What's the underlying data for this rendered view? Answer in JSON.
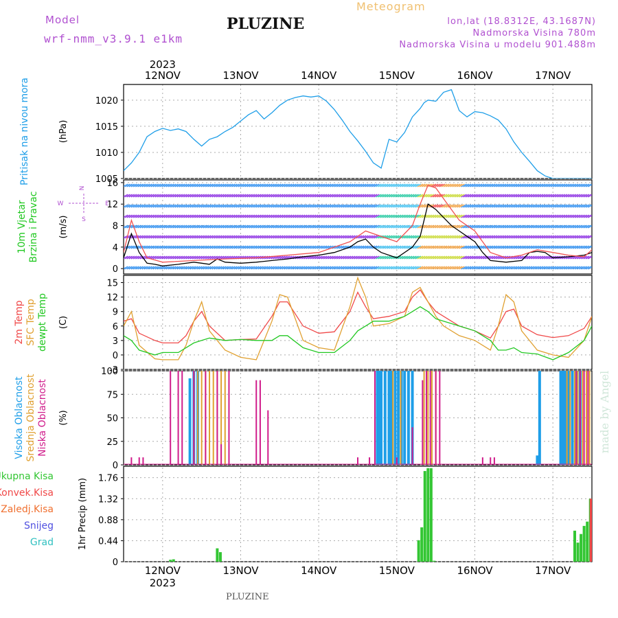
{
  "header": {
    "model_label": "Model",
    "model_name": "wrf-nmm_v3.9.1 e1km",
    "station": "PLUZINE",
    "product": "Meteogram",
    "coords": "lon,lat (18.8312E, 43.1687N)",
    "elevation": "Nadmorska Visina 780m",
    "model_elevation": "Nadmorska Visina u modelu 901.488m",
    "footer_station": "PLUZINE",
    "watermark": "made by Angel"
  },
  "colors": {
    "pressure": "#1e9ee8",
    "t2m": "#f04848",
    "sfc": "#e0a030",
    "dewpt": "#22c822",
    "wind_line": "#000000",
    "gust_line": "#f05050",
    "high_cloud": "#1e9ee8",
    "mid_cloud": "#e0a030",
    "low_cloud": "#d01c8b",
    "rain_total": "#33c633",
    "rain_conv": "#f04848",
    "rain_freeze": "#f07030",
    "snow": "#5050e0",
    "hail": "#30c0c0",
    "purple_text": "#b050d0"
  },
  "time_axis": {
    "year": "2023",
    "days": [
      "12NOV",
      "13NOV",
      "14NOV",
      "15NOV",
      "16NOV",
      "17NOV"
    ],
    "range_days": [
      11.5,
      17.5
    ]
  },
  "chart_data": [
    {
      "type": "line",
      "panel": "pressure",
      "title_left": "Pritisak na nivou mora",
      "ylabel": "(hPa)",
      "ylim": [
        1005,
        1023
      ],
      "yticks": [
        "1005",
        "1010",
        "1015",
        "1020"
      ],
      "series": [
        {
          "name": "Pritisak na nivou mora",
          "x": [
            11.5,
            11.6,
            11.7,
            11.8,
            11.9,
            12.0,
            12.1,
            12.2,
            12.3,
            12.4,
            12.5,
            12.6,
            12.7,
            12.8,
            12.9,
            13.0,
            13.1,
            13.2,
            13.3,
            13.4,
            13.5,
            13.6,
            13.7,
            13.8,
            13.9,
            14.0,
            14.1,
            14.2,
            14.3,
            14.4,
            14.5,
            14.6,
            14.7,
            14.8,
            14.9,
            15.0,
            15.1,
            15.2,
            15.3,
            15.35,
            15.4,
            15.5,
            15.6,
            15.7,
            15.8,
            15.9,
            16.0,
            16.1,
            16.2,
            16.3,
            16.4,
            16.5,
            16.6,
            16.7,
            16.8,
            16.9,
            17.0,
            17.1,
            17.2,
            17.3,
            17.4,
            17.5
          ],
          "y": [
            1006.5,
            1008,
            1010,
            1013,
            1014,
            1014.6,
            1014.2,
            1014.5,
            1014.0,
            1012.5,
            1011.2,
            1012.5,
            1013.0,
            1014.0,
            1014.8,
            1016.0,
            1017.2,
            1018.0,
            1016.4,
            1017.6,
            1019.0,
            1020.0,
            1020.5,
            1020.8,
            1020.6,
            1020.8,
            1019.8,
            1018.2,
            1016.2,
            1014.0,
            1012.2,
            1010.2,
            1008.0,
            1007.0,
            1012.5,
            1012.0,
            1013.8,
            1016.8,
            1018.4,
            1019.5,
            1020.0,
            1019.8,
            1021.5,
            1022.0,
            1018.0,
            1016.8,
            1017.8,
            1017.6,
            1017.0,
            1016.2,
            1014.5,
            1012.0,
            1010.0,
            1008.3,
            1006.5,
            1005.5,
            1005.0,
            1005.0,
            1005.0,
            1005.0,
            1005.0,
            1005.0
          ]
        }
      ]
    },
    {
      "type": "line",
      "panel": "wind",
      "title_left": [
        "10m Vjetar",
        "Brzina i Pravac"
      ],
      "ylabel": "(m/s)",
      "ylim": [
        -1,
        16.5
      ],
      "yticks": [
        "0",
        "4",
        "8",
        "12",
        "16"
      ],
      "legend_compass": {
        "n": "N",
        "s": "S",
        "w": "W",
        "e": "E"
      },
      "series": [
        {
          "name": "speed",
          "x": [
            11.5,
            11.6,
            11.7,
            11.8,
            11.9,
            12.0,
            12.2,
            12.4,
            12.5,
            12.6,
            12.7,
            12.8,
            13.0,
            13.2,
            13.4,
            13.6,
            13.8,
            14.0,
            14.2,
            14.4,
            14.5,
            14.6,
            14.7,
            14.8,
            15.0,
            15.2,
            15.3,
            15.4,
            15.5,
            15.6,
            15.7,
            15.8,
            15.9,
            16.0,
            16.1,
            16.2,
            16.4,
            16.6,
            16.7,
            16.8,
            16.9,
            17.0,
            17.2,
            17.4,
            17.5
          ],
          "y": [
            2,
            6.5,
            3,
            1,
            0.8,
            0.5,
            0.8,
            1.2,
            1.0,
            0.8,
            1.8,
            1.2,
            1.0,
            1.2,
            1.5,
            1.8,
            2.2,
            2.5,
            3,
            4,
            5,
            5.5,
            4,
            3,
            2,
            4,
            6,
            12,
            11,
            9.5,
            8,
            7,
            6,
            5,
            3,
            1.5,
            1.2,
            1.5,
            3,
            3.2,
            3.0,
            2.0,
            2.2,
            2.5,
            3
          ]
        },
        {
          "name": "gust",
          "x": [
            11.5,
            11.6,
            11.7,
            11.8,
            12.0,
            12.4,
            12.8,
            13.2,
            13.6,
            14.0,
            14.4,
            14.6,
            14.8,
            15.0,
            15.2,
            15.3,
            15.4,
            15.5,
            15.6,
            15.7,
            15.8,
            16.0,
            16.2,
            16.4,
            16.6,
            16.8,
            17.0,
            17.2,
            17.4,
            17.5
          ],
          "y": [
            3,
            9,
            5,
            2,
            1.2,
            1.5,
            1.8,
            2,
            2.5,
            3,
            5,
            7,
            6,
            5,
            8,
            12,
            15.5,
            15,
            13,
            11,
            9,
            7,
            3,
            2,
            2.5,
            3.5,
            3,
            2.5,
            2.2,
            3.5
          ]
        }
      ]
    },
    {
      "type": "line",
      "panel": "temperature",
      "title_left": [
        "2m Temp",
        "SFC Temp",
        "dewpt Temp"
      ],
      "ylabel": "(C)",
      "ylim": [
        -3,
        16.5
      ],
      "yticks": [
        "-3",
        "0",
        "3",
        "6",
        "9",
        "12",
        "15"
      ],
      "series": [
        {
          "name": "2m Temp",
          "x": [
            11.5,
            11.6,
            11.7,
            11.9,
            12.0,
            12.2,
            12.3,
            12.4,
            12.5,
            12.6,
            12.8,
            13.0,
            13.2,
            13.4,
            13.5,
            13.6,
            13.8,
            14.0,
            14.2,
            14.4,
            14.5,
            14.6,
            14.7,
            14.9,
            15.1,
            15.2,
            15.3,
            15.4,
            15.5,
            15.6,
            15.8,
            16.0,
            16.2,
            16.3,
            16.4,
            16.5,
            16.6,
            16.8,
            17.0,
            17.2,
            17.4,
            17.5
          ],
          "y": [
            7,
            7.5,
            4.5,
            3,
            2.5,
            2.5,
            4,
            7,
            9,
            6,
            3,
            3.2,
            3.3,
            8,
            11,
            11,
            6,
            4.5,
            4.8,
            9,
            13,
            10,
            7.5,
            8,
            9,
            12,
            13.5,
            11,
            9,
            8,
            6,
            5,
            3.5,
            6,
            9,
            9.5,
            6,
            4.2,
            3.6,
            4,
            5.5,
            8
          ]
        },
        {
          "name": "SFC Temp",
          "x": [
            11.5,
            11.6,
            11.7,
            11.9,
            12.0,
            12.2,
            12.3,
            12.4,
            12.5,
            12.6,
            12.8,
            13.0,
            13.2,
            13.4,
            13.5,
            13.6,
            13.8,
            14.0,
            14.2,
            14.4,
            14.5,
            14.6,
            14.7,
            14.9,
            15.1,
            15.2,
            15.3,
            15.4,
            15.5,
            15.6,
            15.8,
            16.0,
            16.2,
            16.3,
            16.4,
            16.5,
            16.6,
            16.8,
            17.0,
            17.2,
            17.4,
            17.5
          ],
          "y": [
            6,
            9,
            2,
            -0.8,
            -1,
            -1,
            2,
            7,
            11,
            5,
            1,
            -0.5,
            -1,
            7,
            12.5,
            12,
            3,
            1.5,
            1,
            10,
            16,
            12,
            6,
            6.5,
            8,
            13,
            14,
            11,
            8,
            6,
            4,
            3,
            1,
            6,
            12.5,
            11,
            5,
            1,
            0,
            -0.5,
            3,
            8
          ]
        },
        {
          "name": "dewpt Temp",
          "x": [
            11.5,
            11.6,
            11.7,
            11.9,
            12.0,
            12.2,
            12.3,
            12.4,
            12.5,
            12.6,
            12.8,
            13.0,
            13.2,
            13.4,
            13.5,
            13.6,
            13.8,
            14.0,
            14.2,
            14.4,
            14.5,
            14.6,
            14.7,
            14.9,
            15.1,
            15.2,
            15.3,
            15.4,
            15.5,
            15.6,
            15.8,
            16.0,
            16.2,
            16.3,
            16.4,
            16.5,
            16.6,
            16.8,
            17.0,
            17.2,
            17.4,
            17.5
          ],
          "y": [
            4,
            3,
            1,
            0,
            0.5,
            0.5,
            1.5,
            2.5,
            3,
            3.5,
            3,
            3.2,
            3,
            3,
            4,
            4,
            1.5,
            0.5,
            0.5,
            3,
            5,
            6,
            7,
            7,
            8,
            9,
            10,
            9,
            7.5,
            7,
            6,
            5,
            3,
            1,
            1,
            1.5,
            0.5,
            0.2,
            -1,
            0.5,
            3,
            6
          ]
        }
      ]
    },
    {
      "type": "bar",
      "panel": "clouds",
      "title_left": [
        "Visoka Oblacnost",
        "Srednja Oblacnost",
        "Niska Oblacnost"
      ],
      "ylabel": "(%)",
      "ylim": [
        0,
        100
      ],
      "yticks": [
        "0",
        "25",
        "50",
        "75",
        "100"
      ],
      "series": [
        {
          "name": "Visoka Oblacnost",
          "x": [
            12.35,
            12.4,
            12.45,
            14.75,
            14.78,
            14.8,
            14.85,
            14.9,
            14.93,
            14.98,
            15.02,
            15.06,
            15.1,
            15.15,
            15.2,
            16.8,
            16.83,
            17.1,
            17.13,
            17.16,
            17.2,
            17.25,
            17.3,
            17.35
          ],
          "y": [
            92,
            100,
            100,
            100,
            100,
            100,
            100,
            100,
            100,
            100,
            100,
            100,
            100,
            100,
            100,
            10,
            100,
            100,
            100,
            100,
            100,
            100,
            100,
            100
          ]
        },
        {
          "name": "Srednja Oblacnost",
          "x": [
            12.4,
            12.45,
            12.5,
            12.55,
            12.6,
            12.65,
            12.7,
            12.75,
            12.8,
            14.95,
            15.05,
            15.35,
            15.4,
            15.45,
            15.5,
            17.18,
            17.22,
            17.28,
            17.32,
            17.38,
            17.43,
            17.47
          ],
          "y": [
            100,
            100,
            100,
            100,
            100,
            100,
            100,
            100,
            100,
            100,
            100,
            100,
            100,
            100,
            100,
            100,
            100,
            100,
            100,
            100,
            100,
            100
          ]
        },
        {
          "name": "Niska Oblacnost",
          "x": [
            11.6,
            11.7,
            11.75,
            12.1,
            12.2,
            12.25,
            12.4,
            12.55,
            12.7,
            12.75,
            12.85,
            13.2,
            13.25,
            13.35,
            14.5,
            14.65,
            14.72,
            15.0,
            15.2,
            15.33,
            15.38,
            15.43,
            15.5,
            15.55,
            16.1,
            16.2,
            16.25,
            17.3,
            17.35,
            17.4,
            17.45
          ],
          "y": [
            8,
            8,
            8,
            100,
            100,
            100,
            100,
            100,
            100,
            22,
            100,
            90,
            90,
            58,
            8,
            8,
            100,
            8,
            40,
            90,
            100,
            100,
            100,
            100,
            8,
            8,
            8,
            100,
            100,
            100,
            100
          ]
        }
      ]
    },
    {
      "type": "bar",
      "panel": "precip",
      "title_left": [
        "Ukupna Kisa",
        "Konvek.Kisa",
        "Zaledj.Kisa",
        "Snijeg",
        "Grad"
      ],
      "ylabel": "1hr Precip (mm)",
      "ylim": [
        0,
        2
      ],
      "yticks": [
        "0",
        "0.44",
        "0.88",
        "1.32",
        "1.76"
      ],
      "series": [
        {
          "name": "Ukupna Kisa",
          "x": [
            12.1,
            12.14,
            12.7,
            12.74,
            15.28,
            15.32,
            15.36,
            15.4,
            15.44,
            15.48,
            17.28,
            17.32,
            17.36,
            17.4,
            17.44,
            17.48
          ],
          "y": [
            0.04,
            0.05,
            0.28,
            0.2,
            0.45,
            0.72,
            1.9,
            1.96,
            1.96,
            0.02,
            0.65,
            0.4,
            0.58,
            0.75,
            0.84,
            1.32
          ]
        },
        {
          "name": "Konvek.Kisa",
          "x": [
            17.49
          ],
          "y": [
            1.32
          ]
        }
      ]
    }
  ]
}
